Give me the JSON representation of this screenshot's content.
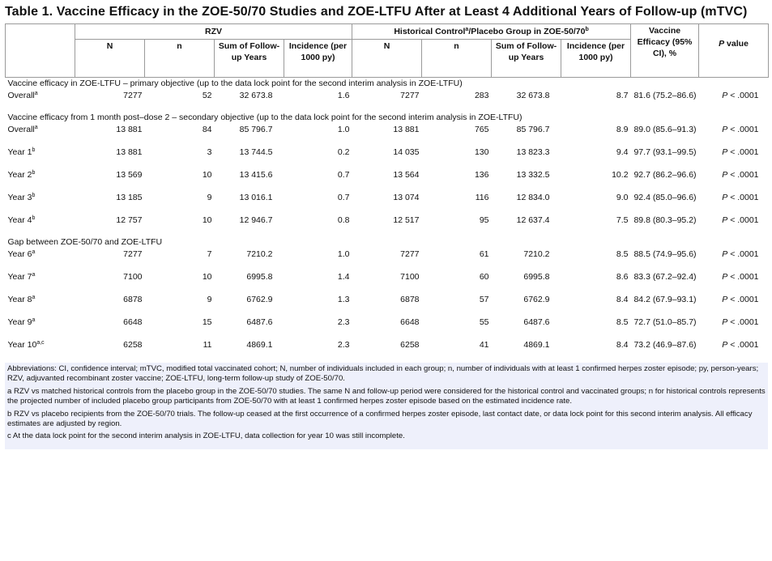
{
  "title": "Table 1. Vaccine Efficacy in the ZOE-50/70 Studies and ZOE-LTFU After at Least 4 Additional Years of Follow-up (mTVC)",
  "header": {
    "rzv": "RZV",
    "hist_pre": "Historical Control",
    "hist_sup_a": "a",
    "hist_post": "/Placebo Group in ZOE-50/70",
    "hist_sup_b": "b",
    "ve": "Vaccine Efficacy (95% CI), %",
    "p_italic": "P",
    "p_rest": " value",
    "cols": [
      "N",
      "n",
      "Sum of Follow-up Years",
      "Incidence (per 1000 py)",
      "N",
      "n",
      "Sum of Follow-up Years",
      "Incidence (per 1000 py)"
    ]
  },
  "sections": [
    {
      "label": "Vaccine efficacy in ZOE-LTFU – primary objective (up to the data lock point for the second interim analysis in ZOE-LTFU)",
      "rows": [
        {
          "label": "Overall",
          "sup": "a",
          "cells": [
            "7277",
            "52",
            "32 673.8",
            "1.6",
            "7277",
            "283",
            "32 673.8",
            "8.7"
          ],
          "ve": "81.6 (75.2–86.6)",
          "p": "P < .0001"
        }
      ]
    },
    {
      "label": "Vaccine efficacy from 1 month post–dose 2 – secondary objective (up to the data lock point for the second interim analysis in ZOE-LTFU)",
      "rows": [
        {
          "label": "Overall",
          "sup": "a",
          "cells": [
            "13 881",
            "84",
            "85 796.7",
            "1.0",
            "13 881",
            "765",
            "85 796.7",
            "8.9"
          ],
          "ve": "89.0 (85.6–91.3)",
          "p": "P < .0001"
        },
        {
          "label": "Year 1",
          "sup": "b",
          "cells": [
            "13 881",
            "3",
            "13 744.5",
            "0.2",
            "14 035",
            "130",
            "13 823.3",
            "9.4"
          ],
          "ve": "97.7 (93.1–99.5)",
          "p": "P < .0001"
        },
        {
          "label": "Year 2",
          "sup": "b",
          "cells": [
            "13 569",
            "10",
            "13 415.6",
            "0.7",
            "13 564",
            "136",
            "13 332.5",
            "10.2"
          ],
          "ve": "92.7 (86.2–96.6)",
          "p": "P < .0001"
        },
        {
          "label": "Year 3",
          "sup": "b",
          "cells": [
            "13 185",
            "9",
            "13 016.1",
            "0.7",
            "13 074",
            "116",
            "12 834.0",
            "9.0"
          ],
          "ve": "92.4 (85.0–96.6)",
          "p": "P < .0001"
        },
        {
          "label": "Year 4",
          "sup": "b",
          "cells": [
            "12 757",
            "10",
            "12 946.7",
            "0.8",
            "12 517",
            "95",
            "12 637.4",
            "7.5"
          ],
          "ve": "89.8 (80.3–95.2)",
          "p": "P < .0001"
        }
      ]
    },
    {
      "label": "Gap between ZOE-50/70 and ZOE-LTFU",
      "rows": [
        {
          "label": "Year 6",
          "sup": "a",
          "cells": [
            "7277",
            "7",
            "7210.2",
            "1.0",
            "7277",
            "61",
            "7210.2",
            "8.5"
          ],
          "ve": "88.5 (74.9–95.6)",
          "p": "P < .0001"
        },
        {
          "label": "Year 7",
          "sup": "a",
          "cells": [
            "7100",
            "10",
            "6995.8",
            "1.4",
            "7100",
            "60",
            "6995.8",
            "8.6"
          ],
          "ve": "83.3 (67.2–92.4)",
          "p": "P < .0001"
        },
        {
          "label": "Year 8",
          "sup": "a",
          "cells": [
            "6878",
            "9",
            "6762.9",
            "1.3",
            "6878",
            "57",
            "6762.9",
            "8.4"
          ],
          "ve": "84.2 (67.9–93.1)",
          "p": "P < .0001"
        },
        {
          "label": "Year 9",
          "sup": "a",
          "cells": [
            "6648",
            "15",
            "6487.6",
            "2.3",
            "6648",
            "55",
            "6487.6",
            "8.5"
          ],
          "ve": "72.7 (51.0–85.7)",
          "p": "P < .0001"
        },
        {
          "label": "Year 10",
          "sup": "a,c",
          "cells": [
            "6258",
            "11",
            "4869.1",
            "2.3",
            "6258",
            "41",
            "4869.1",
            "8.4"
          ],
          "ve": "73.2 (46.9–87.6)",
          "p": "P < .0001"
        }
      ]
    }
  ],
  "footnotes": [
    "Abbreviations: CI, confidence interval; mTVC, modified total vaccinated cohort; N, number of individuals included in each group; n, number of individuals with at least 1 confirmed herpes zoster episode; py, person-years; RZV, adjuvanted recombinant zoster vaccine; ZOE-LTFU, long-term follow-up study of ZOE-50/70.",
    "a RZV vs matched historical controls from the placebo group in the ZOE-50/70 studies. The same N and follow-up period were considered for the historical control and vaccinated groups; n for historical controls represents the projected number of included placebo group participants from ZOE-50/70 with at least 1 confirmed herpes zoster episode based on the estimated incidence rate.",
    "b RZV vs placebo recipients from the ZOE-50/70 trials. The follow-up ceased at the first occurrence of a confirmed herpes zoster episode, last contact date, or data lock point for this second interim analysis. All efficacy estimates are adjusted by region.",
    "c At the data lock point for the second interim analysis in ZOE-LTFU, data collection for year 10 was still incomplete."
  ]
}
